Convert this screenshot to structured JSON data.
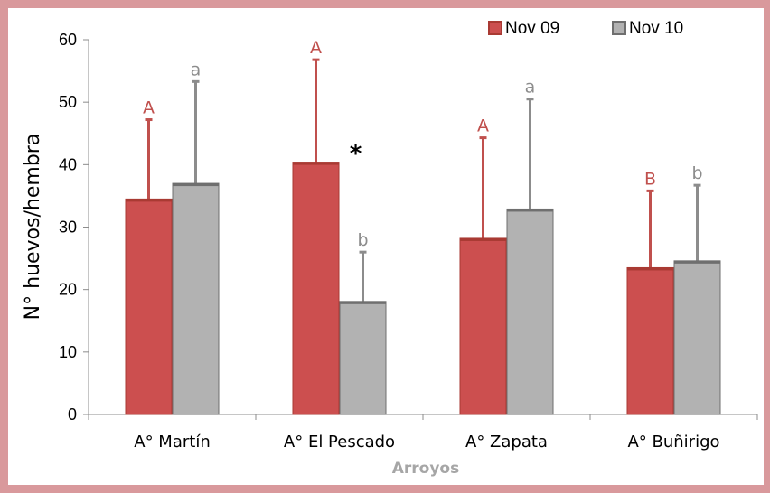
{
  "chart_data": {
    "type": "bar",
    "categories": [
      "A° Martín",
      "A° El Pescado",
      "A° Zapata",
      "A° Buñirigo"
    ],
    "series": [
      {
        "name": "Nov 09",
        "values": [
          34.5,
          40.4,
          28.2,
          23.5
        ],
        "error_upper": [
          47.2,
          56.8,
          44.3,
          35.8
        ],
        "annotations": [
          "A",
          "A",
          "A",
          "B"
        ],
        "color": "#cc4f4f",
        "annotation_color": "#c0504d"
      },
      {
        "name": "Nov 10",
        "values": [
          37.0,
          18.1,
          32.9,
          24.6
        ],
        "error_upper": [
          53.3,
          26.0,
          50.5,
          36.7
        ],
        "annotations": [
          "a",
          "b",
          "a",
          "b"
        ],
        "color": "#b2b2b2",
        "annotation_color": "#8c8c8c"
      }
    ],
    "extra_annotations": [
      {
        "text": "*",
        "category_index": 1,
        "y": 42
      }
    ],
    "xlabel": "Arroyos",
    "ylabel": "N° huevos/hembra",
    "ylim": [
      0,
      60
    ],
    "yticks": [
      0,
      10,
      20,
      30,
      40,
      50,
      60
    ],
    "grid": false,
    "legend_position": "top-right"
  }
}
